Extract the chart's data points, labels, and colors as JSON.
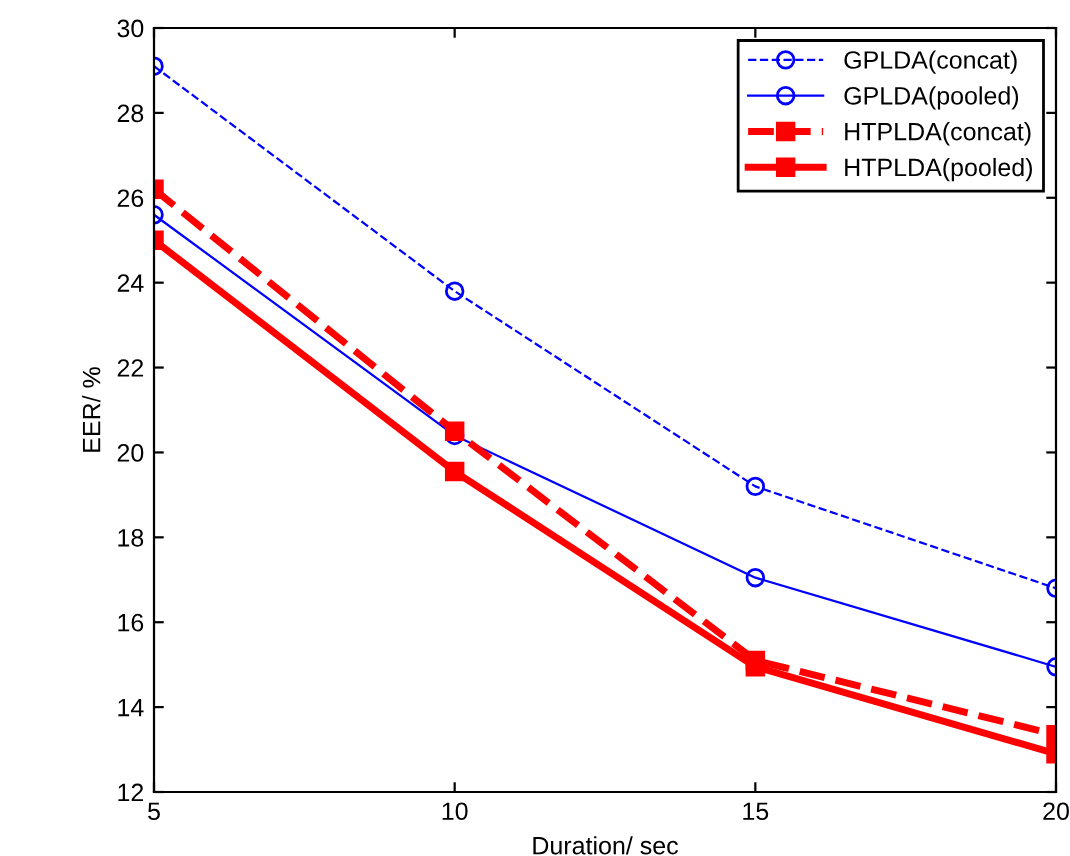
{
  "chart_data": {
    "type": "line",
    "xlabel": "Duration/ sec",
    "ylabel": "EER/ %",
    "x": [
      5,
      10,
      15,
      20
    ],
    "series": [
      {
        "name": "GPLDA(concat)",
        "color": "#0000ff",
        "values": [
          29.1,
          23.8,
          19.2,
          16.8
        ],
        "marker": "circle",
        "line_style": "dashed"
      },
      {
        "name": "GPLDA(pooled)",
        "color": "#0000ff",
        "values": [
          25.6,
          20.4,
          17.05,
          14.95
        ],
        "marker": "circle",
        "line_style": "solid"
      },
      {
        "name": "HTPLDA(concat)",
        "color": "#ff0000",
        "values": [
          26.2,
          20.5,
          15.1,
          13.35
        ],
        "marker": "square",
        "line_style": "dashed"
      },
      {
        "name": "HTPLDA(pooled)",
        "color": "#ff0000",
        "values": [
          25.0,
          19.55,
          14.95,
          12.9
        ],
        "marker": "square",
        "line_style": "solid"
      }
    ],
    "xlim": [
      5,
      20
    ],
    "xticks": [
      5,
      10,
      15,
      20
    ],
    "ylim": [
      12,
      30
    ],
    "yticks": [
      12,
      14,
      16,
      18,
      20,
      22,
      24,
      26,
      28,
      30
    ],
    "grid": false,
    "legend": "top right"
  }
}
